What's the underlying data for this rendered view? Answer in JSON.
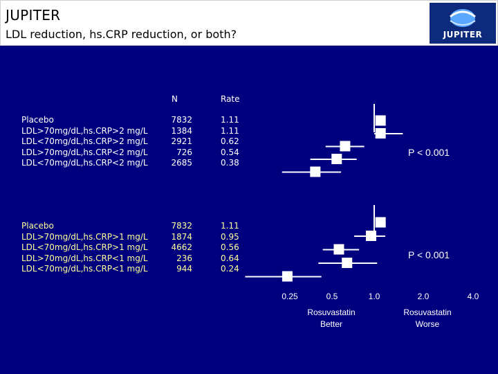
{
  "header": {
    "title": "JUPITER",
    "subtitle": "LDL reduction, hs.CRP reduction, or both?",
    "logo_text": "JUPITER"
  },
  "columns": {
    "n": "N",
    "rate": "Rate"
  },
  "groups": [
    {
      "rows": [
        {
          "label": "Placebo",
          "n": "7832",
          "rate": "1.11"
        },
        {
          "label": "LDL>70mg/dL,hs.CRP>2 mg/L",
          "n": "1384",
          "rate": "1.11"
        },
        {
          "label": "LDL<70mg/dL,hs.CRP>2 mg/L",
          "n": "2921",
          "rate": "0.62"
        },
        {
          "label": "LDL>70mg/dL,hs.CRP<2 mg/L",
          "n": "726",
          "rate": "0.54"
        },
        {
          "label": "LDL<70mg/dL,hs.CRP<2 mg/L",
          "n": "2685",
          "rate": "0.38"
        }
      ],
      "p_value": "P < 0.001"
    },
    {
      "rows": [
        {
          "label": "Placebo",
          "n": "7832",
          "rate": "1.11"
        },
        {
          "label": "LDL>70mg/dL,hs.CRP>1 mg/L",
          "n": "1874",
          "rate": "0.95"
        },
        {
          "label": "LDL<70mg/dL,hs.CRP>1 mg/L",
          "n": "4662",
          "rate": "0.56"
        },
        {
          "label": "LDL>70mg/dL,hs.CRP<1 mg/L",
          "n": "236",
          "rate": "0.64"
        },
        {
          "label": "LDL<70mg/dL,hs.CRP<1 mg/L",
          "n": "944",
          "rate": "0.24"
        }
      ],
      "p_value": "P < 0.001"
    }
  ],
  "axis": {
    "ticks": [
      "0.25",
      "0.5",
      "1.0",
      "2.0",
      "4.0"
    ]
  },
  "captions": {
    "left": [
      "Rosuvastatin",
      "Better"
    ],
    "right": [
      "Rosuvastatin",
      "Worse"
    ]
  },
  "chart_data": {
    "type": "forest",
    "x_scale": "log2",
    "xlim": [
      0.25,
      4.0
    ],
    "reference_line": 1.0,
    "colors": {
      "background": "#00007f",
      "marker": "#ffffff",
      "group2_labels": "#ffff99"
    },
    "groups": [
      {
        "points": [
          {
            "value": 1.11,
            "ci": [
              1.0,
              1.0
            ]
          },
          {
            "value": 1.11,
            "ci": [
              1.0,
              1.6
            ]
          },
          {
            "value": 0.62,
            "ci": [
              0.45,
              0.85
            ]
          },
          {
            "value": 0.54,
            "ci": [
              0.35,
              0.75
            ]
          },
          {
            "value": 0.38,
            "ci": [
              0.22,
              0.58
            ]
          }
        ]
      },
      {
        "points": [
          {
            "value": 1.11,
            "ci": [
              1.0,
              1.0
            ]
          },
          {
            "value": 0.95,
            "ci": [
              0.72,
              1.2
            ]
          },
          {
            "value": 0.56,
            "ci": [
              0.43,
              0.78
            ]
          },
          {
            "value": 0.64,
            "ci": [
              0.4,
              1.05
            ]
          },
          {
            "value": 0.24,
            "ci": [
              0.12,
              0.42
            ]
          }
        ]
      }
    ]
  }
}
